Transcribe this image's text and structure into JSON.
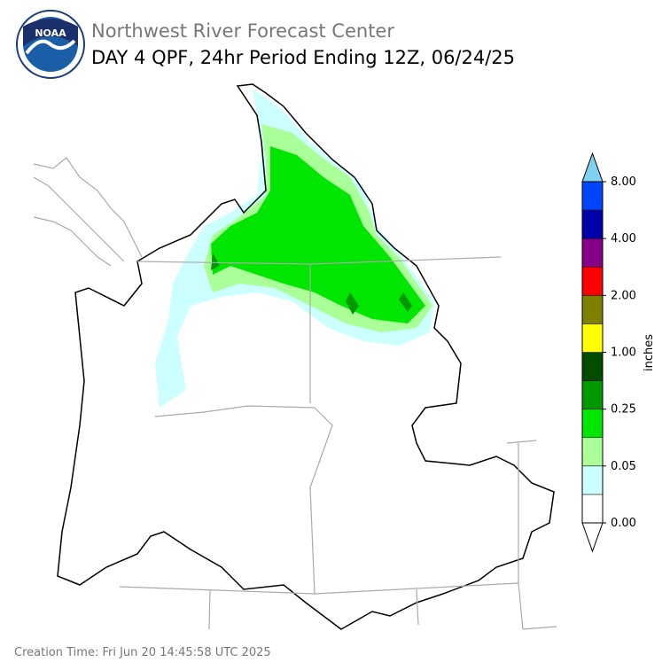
{
  "header": {
    "agency": "Northwest River Forecast Center",
    "title": "DAY 4 QPF, 24hr Period Ending 12Z, 06/24/25"
  },
  "logo": {
    "text": "NOAA"
  },
  "colorbar": {
    "label": "inches",
    "ticks": [
      "0.00",
      "0.05",
      "0.25",
      "1.00",
      "2.00",
      "4.00",
      "8.00"
    ],
    "colors": [
      "#ffffff",
      "#ccffff",
      "#aaff99",
      "#00e600",
      "#009900",
      "#004d00",
      "#ffff00",
      "#808000",
      "#ff0000",
      "#880088",
      "#0000aa",
      "#0044ff"
    ],
    "under_color": "#ffffff",
    "over_color": "#80d0f0"
  },
  "footer": {
    "creation_time": "Creation Time: Fri Jun 20 14:45:58 UTC 2025"
  }
}
